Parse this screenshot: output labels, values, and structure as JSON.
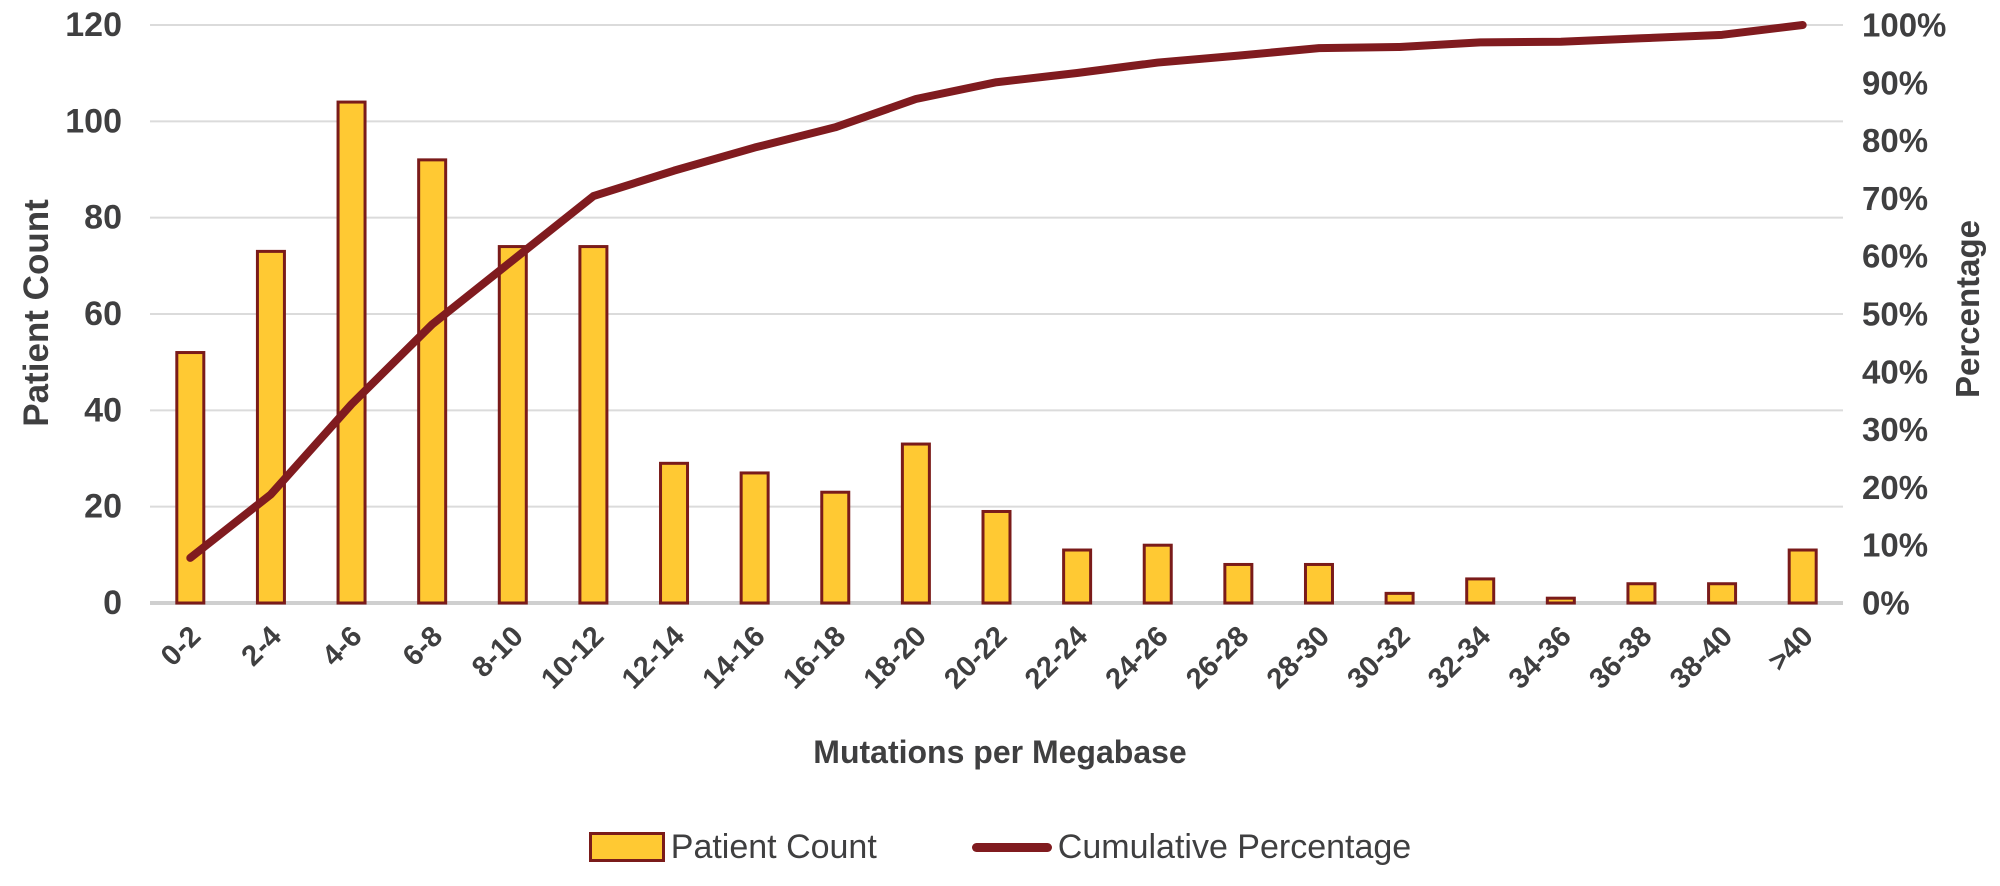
{
  "chart_data": {
    "type": "pareto (bar + cumulative line combo)",
    "categories": [
      "0-2",
      "2-4",
      "4-6",
      "6-8",
      "8-10",
      "10-12",
      "12-14",
      "14-16",
      "16-18",
      "18-20",
      "20-22",
      "22-24",
      "24-26",
      "26-28",
      "28-30",
      "30-32",
      "32-34",
      "34-36",
      "36-38",
      "38-40",
      ">40"
    ],
    "series": [
      {
        "name": "Patient Count",
        "type": "bar",
        "axis": "left",
        "values": [
          52,
          73,
          104,
          92,
          74,
          74,
          29,
          27,
          23,
          33,
          19,
          11,
          12,
          8,
          8,
          2,
          5,
          1,
          4,
          4,
          11
        ]
      },
      {
        "name": "Cumulative Percentage",
        "type": "line",
        "axis": "right",
        "values_percent": [
          7.8,
          18.8,
          34.4,
          48.2,
          59.3,
          70.4,
          74.8,
          78.8,
          82.3,
          87.2,
          90.1,
          91.7,
          93.5,
          94.7,
          96.0,
          96.2,
          97.0,
          97.1,
          97.7,
          98.3,
          100.0
        ]
      }
    ],
    "left_axis": {
      "title": "Patient Count",
      "min": 0,
      "max": 120,
      "tick_step": 20,
      "tick_labels": [
        "0",
        "20",
        "40",
        "60",
        "80",
        "100",
        "120"
      ]
    },
    "right_axis": {
      "title": "Percentage",
      "min": 0,
      "max": 100,
      "tick_step": 10,
      "tick_labels": [
        "0%",
        "10%",
        "20%",
        "30%",
        "40%",
        "50%",
        "60%",
        "70%",
        "80%",
        "90%",
        "100%"
      ]
    },
    "x_axis": {
      "title": "Mutations per Megabase"
    },
    "grid": "horizontal gridlines at left-axis ticks",
    "legend_position": "bottom",
    "title": ""
  },
  "legend": {
    "items": [
      {
        "label": "Patient Count",
        "marker": "bar"
      },
      {
        "label": "Cumulative Percentage",
        "marker": "line"
      }
    ]
  },
  "colors": {
    "bar_fill": "#FFC933",
    "bar_border": "#7A1B1A",
    "line": "#801B1F",
    "text": "#3F3F40",
    "gridline": "#DBDBDB",
    "axis_line": "#CFCFCF",
    "background": "#FFFFFF"
  }
}
